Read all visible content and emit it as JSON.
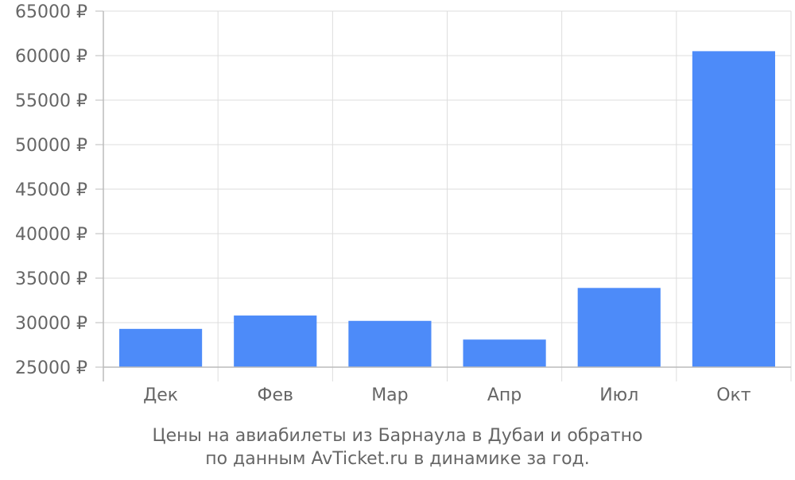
{
  "chart_data": {
    "type": "bar",
    "title": "",
    "xlabel": "",
    "ylabel": "",
    "categories": [
      "Дек",
      "Фев",
      "Мар",
      "Апр",
      "Июл",
      "Окт"
    ],
    "values": [
      29300,
      30800,
      30200,
      28100,
      33900,
      60500
    ],
    "ylim": [
      25000,
      65000
    ],
    "yticks": [
      25000,
      30000,
      35000,
      40000,
      45000,
      50000,
      55000,
      60000,
      65000
    ],
    "ytick_labels": [
      "25000 ₽",
      "30000 ₽",
      "35000 ₽",
      "40000 ₽",
      "45000 ₽",
      "50000 ₽",
      "55000 ₽",
      "60000 ₽",
      "65000 ₽"
    ],
    "grid": true,
    "bar_color": "#4d8bf9",
    "grid_color": "#dddddd",
    "axis_color": "#bbbbbb",
    "text_color": "#666666"
  },
  "caption": {
    "line1": "Цены на авиабилеты из Барнаула в Дубаи и обратно",
    "line2": "по данным AvTicket.ru в динамике за год."
  }
}
